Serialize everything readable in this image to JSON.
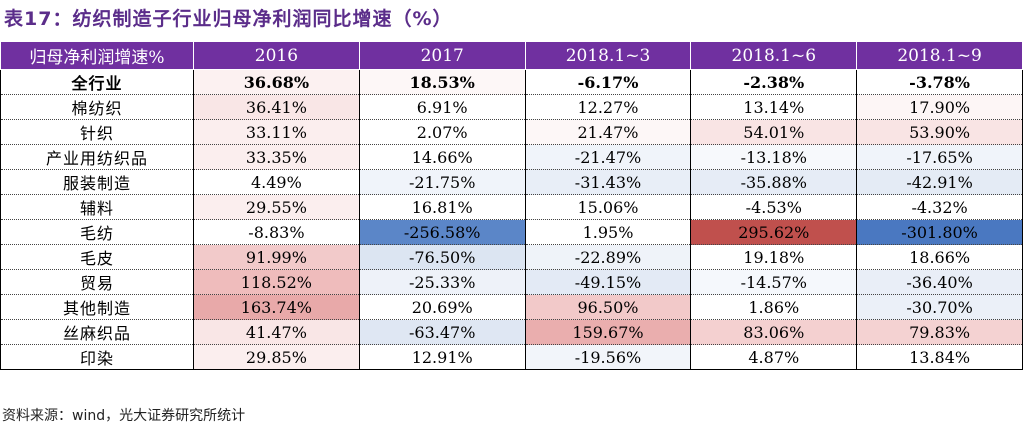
{
  "title": "表17：纺织制造子行业归母净利润同比增速（%）",
  "table": {
    "header": [
      "归母净利润增速%",
      "2016",
      "2017",
      "2018.1~3",
      "2018.1~6",
      "2018.1~9"
    ],
    "rows": [
      {
        "label": "全行业",
        "bold": true,
        "values": [
          "36.68%",
          "18.53%",
          "-6.17%",
          "-2.38%",
          "-3.78%"
        ],
        "colors": [
          "#fcf1f1",
          "#fdf7f7",
          "#ffffff",
          "#ffffff",
          "#ffffff"
        ]
      },
      {
        "label": "棉纺织",
        "bold": false,
        "values": [
          "36.41%",
          "6.91%",
          "12.27%",
          "13.14%",
          "17.90%"
        ],
        "colors": [
          "#f9e6e6",
          "#ffffff",
          "#ffffff",
          "#ffffff",
          "#fdf6f6"
        ]
      },
      {
        "label": "针织",
        "bold": false,
        "values": [
          "33.11%",
          "2.07%",
          "21.47%",
          "54.01%",
          "53.90%"
        ],
        "colors": [
          "#fbeeee",
          "#ffffff",
          "#fdf7f7",
          "#f9e4e4",
          "#f9e4e4"
        ]
      },
      {
        "label": "产业用纺织品",
        "bold": false,
        "values": [
          "33.35%",
          "14.66%",
          "-21.47%",
          "-13.18%",
          "-17.65%"
        ],
        "colors": [
          "#fbeeee",
          "#ffffff",
          "#f0f4fa",
          "#f7f9fc",
          "#f0f4fa"
        ]
      },
      {
        "label": "服装制造",
        "bold": false,
        "values": [
          "4.49%",
          "-21.75%",
          "-31.43%",
          "-35.88%",
          "-42.91%"
        ],
        "colors": [
          "#ffffff",
          "#f0f4fa",
          "#e8eef7",
          "#e6ecf6",
          "#e4ebf5"
        ]
      },
      {
        "label": "辅料",
        "bold": false,
        "values": [
          "29.55%",
          "16.81%",
          "15.06%",
          "-4.53%",
          "-4.32%"
        ],
        "colors": [
          "#fbeeee",
          "#ffffff",
          "#ffffff",
          "#ffffff",
          "#ffffff"
        ]
      },
      {
        "label": "毛纺",
        "bold": false,
        "values": [
          "-8.83%",
          "-256.58%",
          "1.95%",
          "295.62%",
          "-301.80%"
        ],
        "colors": [
          "#ffffff",
          "#5b86c8",
          "#ffffff",
          "#c0504d",
          "#4a78c1"
        ]
      },
      {
        "label": "毛皮",
        "bold": false,
        "values": [
          "91.99%",
          "-76.50%",
          "-22.89%",
          "19.18%",
          "18.66%"
        ],
        "colors": [
          "#f2caca",
          "#dce5f2",
          "#eff3f9",
          "#ffffff",
          "#ffffff"
        ]
      },
      {
        "label": "贸易",
        "bold": false,
        "values": [
          "118.52%",
          "-25.33%",
          "-49.15%",
          "-14.57%",
          "-36.40%"
        ],
        "colors": [
          "#efbcbc",
          "#eef2f9",
          "#e3eaf5",
          "#f5f8fc",
          "#e9eef7"
        ]
      },
      {
        "label": "其他制造",
        "bold": false,
        "values": [
          "163.74%",
          "20.69%",
          "96.50%",
          "1.86%",
          "-30.70%"
        ],
        "colors": [
          "#e8a9a9",
          "#ffffff",
          "#f2c9c9",
          "#ffffff",
          "#ebf0f8"
        ]
      },
      {
        "label": "丝麻织品",
        "bold": false,
        "values": [
          "41.47%",
          "-63.47%",
          "159.67%",
          "83.06%",
          "79.83%"
        ],
        "colors": [
          "#f9e6e6",
          "#dfe7f3",
          "#eaaeae",
          "#f4d0d0",
          "#f4d2d2"
        ]
      },
      {
        "label": "印染",
        "bold": false,
        "values": [
          "29.85%",
          "12.91%",
          "-19.56%",
          "4.87%",
          "13.84%"
        ],
        "colors": [
          "#fbeeee",
          "#ffffff",
          "#f2f5fa",
          "#ffffff",
          "#ffffff"
        ]
      }
    ]
  },
  "source": "资料来源：wind，光大证券研究所统计"
}
